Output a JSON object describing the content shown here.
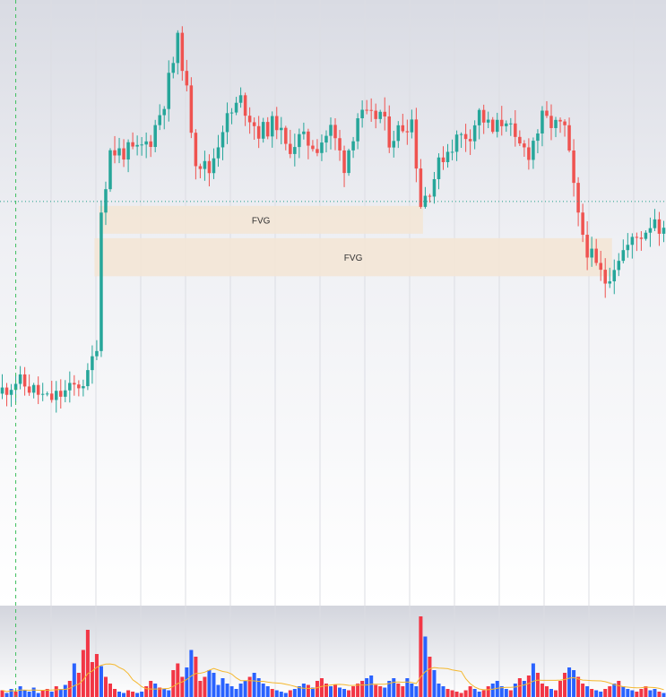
{
  "chart_data": {
    "type": "candlestick",
    "title": "",
    "xlabel": "",
    "ylabel": "",
    "grid": true,
    "legend": "none",
    "price_range": [
      0,
      100
    ],
    "candle_count": 148,
    "fvg_zones": [
      {
        "label": "FVG",
        "start_index": 22,
        "end_index": 93,
        "low": 70.6,
        "high": 79.2
      },
      {
        "label": "FVG",
        "start_index": 21,
        "end_index": 135,
        "low": 57.4,
        "high": 69.2
      }
    ],
    "crosshair": {
      "price": 80.6,
      "candle_index": 3
    },
    "volume_moving_average": true,
    "colors": {
      "bullish": "#26a69a",
      "bearish": "#ef5350",
      "volume_up": "#2962ff",
      "volume_down": "#f23645",
      "fvg_fill": "#f3e6d6",
      "volume_ma": "#f5b82e",
      "grid": "#dcdde3"
    },
    "close_path": [
      [
        0,
        22
      ],
      [
        3,
        25
      ],
      [
        7,
        22
      ],
      [
        10,
        19
      ],
      [
        15,
        22
      ],
      [
        19,
        26
      ],
      [
        21,
        37
      ],
      [
        22,
        78
      ],
      [
        24,
        96
      ],
      [
        30,
        96
      ],
      [
        33,
        100
      ],
      [
        36,
        112
      ],
      [
        39,
        130
      ],
      [
        40,
        124
      ],
      [
        43,
        94
      ],
      [
        46,
        90
      ],
      [
        49,
        104
      ],
      [
        53,
        112
      ],
      [
        57,
        102
      ],
      [
        61,
        105
      ],
      [
        63,
        97
      ],
      [
        66,
        100
      ],
      [
        70,
        98
      ],
      [
        73,
        103
      ],
      [
        76,
        92
      ],
      [
        79,
        107
      ],
      [
        82,
        106
      ],
      [
        84,
        108
      ],
      [
        86,
        100
      ],
      [
        89,
        104
      ],
      [
        91,
        106
      ],
      [
        93,
        80
      ],
      [
        95,
        85
      ],
      [
        98,
        95
      ],
      [
        101,
        100
      ],
      [
        104,
        102
      ],
      [
        106,
        108
      ],
      [
        109,
        102
      ],
      [
        112,
        107
      ],
      [
        114,
        98
      ],
      [
        117,
        96
      ],
      [
        120,
        106
      ],
      [
        123,
        104
      ],
      [
        125,
        103
      ],
      [
        126,
        94
      ],
      [
        128,
        75
      ],
      [
        130,
        66
      ],
      [
        132,
        60
      ],
      [
        134,
        56
      ],
      [
        137,
        64
      ],
      [
        140,
        68
      ],
      [
        143,
        72
      ],
      [
        145,
        76
      ],
      [
        147,
        70
      ]
    ],
    "volume_series": [
      5,
      3,
      6,
      4,
      8,
      5,
      4,
      7,
      3,
      5,
      6,
      4,
      8,
      6,
      9,
      12,
      25,
      18,
      35,
      50,
      26,
      32,
      23,
      15,
      10,
      6,
      4,
      3,
      5,
      4,
      3,
      4,
      8,
      12,
      10,
      7,
      6,
      5,
      20,
      25,
      15,
      22,
      35,
      30,
      12,
      15,
      20,
      18,
      9,
      14,
      10,
      8,
      6,
      10,
      12,
      15,
      18,
      14,
      10,
      8,
      6,
      5,
      4,
      3,
      5,
      6,
      8,
      10,
      9,
      7,
      12,
      14,
      10,
      8,
      9,
      7,
      6,
      5,
      8,
      10,
      12,
      14,
      16,
      9,
      8,
      7,
      12,
      14,
      10,
      8,
      14,
      10,
      8,
      60,
      45,
      30,
      20,
      10,
      8,
      6,
      5,
      4,
      3,
      5,
      8,
      6,
      4,
      5,
      8,
      10,
      12,
      8,
      6,
      5,
      10,
      14,
      12,
      16,
      25,
      18,
      10,
      8,
      6,
      5,
      12,
      18,
      22,
      20,
      15,
      10,
      8,
      6,
      5,
      4,
      6,
      8,
      10,
      12,
      8,
      6,
      5,
      4,
      6,
      8,
      5,
      6,
      4,
      3
    ]
  }
}
